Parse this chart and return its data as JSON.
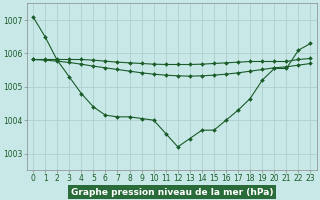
{
  "title": "Graphe pression niveau de la mer (hPa)",
  "plot_bg": "#c8e8e8",
  "label_bg": "#2a6b3a",
  "grid_color": "#b0d0d0",
  "line_color": "#1a5c28",
  "xlim": [
    -0.5,
    23.5
  ],
  "ylim": [
    1002.5,
    1007.5
  ],
  "yticks": [
    1003,
    1004,
    1005,
    1006,
    1007
  ],
  "xticks": [
    0,
    1,
    2,
    3,
    4,
    5,
    6,
    7,
    8,
    9,
    10,
    11,
    12,
    13,
    14,
    15,
    16,
    17,
    18,
    19,
    20,
    21,
    22,
    23
  ],
  "series1": [
    1007.1,
    1006.5,
    1005.8,
    1005.3,
    1004.8,
    1004.4,
    1004.15,
    1004.1,
    1004.1,
    1004.05,
    1004.0,
    1003.6,
    1003.2,
    1003.45,
    1003.7,
    1003.7,
    1004.0,
    1004.3,
    1004.65,
    1005.2,
    1005.55,
    1005.55,
    1006.1,
    1006.3
  ],
  "series2": [
    1005.82,
    1005.82,
    1005.82,
    1005.82,
    1005.82,
    1005.8,
    1005.77,
    1005.74,
    1005.72,
    1005.7,
    1005.68,
    1005.67,
    1005.67,
    1005.67,
    1005.68,
    1005.7,
    1005.72,
    1005.74,
    1005.76,
    1005.76,
    1005.76,
    1005.76,
    1005.82,
    1005.85
  ],
  "series3": [
    1005.82,
    1005.8,
    1005.77,
    1005.73,
    1005.68,
    1005.62,
    1005.57,
    1005.52,
    1005.47,
    1005.42,
    1005.38,
    1005.35,
    1005.33,
    1005.32,
    1005.33,
    1005.35,
    1005.38,
    1005.42,
    1005.47,
    1005.52,
    1005.57,
    1005.6,
    1005.65,
    1005.7
  ]
}
